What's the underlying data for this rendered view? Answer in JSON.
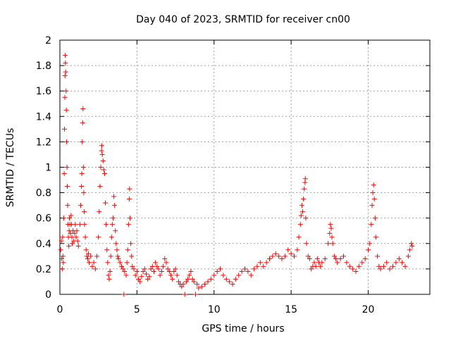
{
  "chart_data": {
    "type": "scatter",
    "title": "Day 040 of 2023, SRMTID for receiver cn00",
    "xlabel": "GPS time / hours",
    "ylabel": "SRMTID / TECUs",
    "xlim": [
      0,
      24
    ],
    "ylim": [
      0,
      2
    ],
    "x_ticks": [
      0,
      5,
      10,
      15,
      20
    ],
    "x_tick_labels": [
      "0",
      "5",
      "10",
      "15",
      "20"
    ],
    "y_ticks": [
      0,
      0.2,
      0.4,
      0.6,
      0.8,
      1,
      1.2,
      1.4,
      1.6,
      1.8,
      2
    ],
    "y_tick_labels": [
      "0",
      "0.2",
      "0.4",
      "0.6",
      "0.8",
      "1",
      "1.2",
      "1.4",
      "1.6",
      "1.8",
      "2"
    ],
    "grid": true,
    "marker": "+",
    "color": "#ff0000",
    "series": [
      {
        "name": "SRMTID",
        "points": [
          [
            0.05,
            0.35
          ],
          [
            0.1,
            0.42
          ],
          [
            0.12,
            0.28
          ],
          [
            0.15,
            0.2
          ],
          [
            0.18,
            0.45
          ],
          [
            0.2,
            0.3
          ],
          [
            0.22,
            0.25
          ],
          [
            0.25,
            0.6
          ],
          [
            0.28,
            0.95
          ],
          [
            0.3,
            1.3
          ],
          [
            0.32,
            1.55
          ],
          [
            0.33,
            1.72
          ],
          [
            0.35,
            1.88
          ],
          [
            0.36,
            1.82
          ],
          [
            0.38,
            1.75
          ],
          [
            0.4,
            1.6
          ],
          [
            0.42,
            1.45
          ],
          [
            0.44,
            1.2
          ],
          [
            0.46,
            1.0
          ],
          [
            0.48,
            0.85
          ],
          [
            0.5,
            0.7
          ],
          [
            0.52,
            0.55
          ],
          [
            0.55,
            0.45
          ],
          [
            0.58,
            0.38
          ],
          [
            0.6,
            0.5
          ],
          [
            0.62,
            0.6
          ],
          [
            0.65,
            0.55
          ],
          [
            0.68,
            0.48
          ],
          [
            0.72,
            0.62
          ],
          [
            0.75,
            0.55
          ],
          [
            0.78,
            0.45
          ],
          [
            0.8,
            0.4
          ],
          [
            0.85,
            0.5
          ],
          [
            0.9,
            0.42
          ],
          [
            0.95,
            0.48
          ],
          [
            1.0,
            0.55
          ],
          [
            1.05,
            0.45
          ],
          [
            1.1,
            0.5
          ],
          [
            1.15,
            0.42
          ],
          [
            1.2,
            0.38
          ],
          [
            1.3,
            0.55
          ],
          [
            1.35,
            0.7
          ],
          [
            1.4,
            0.85
          ],
          [
            1.42,
            0.95
          ],
          [
            1.45,
            1.2
          ],
          [
            1.48,
            1.35
          ],
          [
            1.5,
            1.46
          ],
          [
            1.52,
            1.0
          ],
          [
            1.55,
            0.8
          ],
          [
            1.58,
            0.65
          ],
          [
            1.6,
            0.55
          ],
          [
            1.65,
            0.45
          ],
          [
            1.7,
            0.35
          ],
          [
            1.75,
            0.3
          ],
          [
            1.8,
            0.28
          ],
          [
            1.85,
            0.32
          ],
          [
            1.9,
            0.25
          ],
          [
            2.0,
            0.3
          ],
          [
            2.1,
            0.22
          ],
          [
            2.2,
            0.25
          ],
          [
            2.3,
            0.2
          ],
          [
            2.4,
            0.3
          ],
          [
            2.5,
            0.45
          ],
          [
            2.55,
            0.65
          ],
          [
            2.6,
            0.85
          ],
          [
            2.65,
            1.0
          ],
          [
            2.7,
            1.13
          ],
          [
            2.72,
            1.17
          ],
          [
            2.75,
            1.1
          ],
          [
            2.8,
            1.05
          ],
          [
            2.85,
            0.98
          ],
          [
            2.9,
            0.95
          ],
          [
            2.95,
            0.72
          ],
          [
            3.0,
            0.55
          ],
          [
            3.05,
            0.35
          ],
          [
            3.1,
            0.25
          ],
          [
            3.15,
            0.15
          ],
          [
            3.2,
            0.12
          ],
          [
            3.25,
            0.18
          ],
          [
            3.3,
            0.3
          ],
          [
            3.35,
            0.45
          ],
          [
            3.4,
            0.55
          ],
          [
            3.45,
            0.6
          ],
          [
            3.5,
            0.77
          ],
          [
            3.55,
            0.7
          ],
          [
            3.6,
            0.5
          ],
          [
            3.65,
            0.4
          ],
          [
            3.7,
            0.35
          ],
          [
            3.75,
            0.3
          ],
          [
            3.8,
            0.28
          ],
          [
            3.9,
            0.25
          ],
          [
            4.0,
            0.22
          ],
          [
            4.1,
            0.2
          ],
          [
            4.15,
            0.0
          ],
          [
            4.2,
            0.18
          ],
          [
            4.3,
            0.15
          ],
          [
            4.35,
            0.25
          ],
          [
            4.4,
            0.35
          ],
          [
            4.45,
            0.55
          ],
          [
            4.5,
            0.75
          ],
          [
            4.52,
            0.83
          ],
          [
            4.55,
            0.6
          ],
          [
            4.6,
            0.4
          ],
          [
            4.65,
            0.3
          ],
          [
            4.7,
            0.22
          ],
          [
            4.8,
            0.2
          ],
          [
            4.9,
            0.15
          ],
          [
            5.0,
            0.18
          ],
          [
            5.1,
            0.12
          ],
          [
            5.2,
            0.1
          ],
          [
            5.3,
            0.14
          ],
          [
            5.4,
            0.18
          ],
          [
            5.5,
            0.2
          ],
          [
            5.6,
            0.16
          ],
          [
            5.7,
            0.12
          ],
          [
            5.8,
            0.14
          ],
          [
            5.9,
            0.2
          ],
          [
            6.0,
            0.22
          ],
          [
            6.1,
            0.18
          ],
          [
            6.2,
            0.25
          ],
          [
            6.3,
            0.22
          ],
          [
            6.4,
            0.2
          ],
          [
            6.5,
            0.15
          ],
          [
            6.6,
            0.18
          ],
          [
            6.7,
            0.22
          ],
          [
            6.8,
            0.28
          ],
          [
            6.9,
            0.25
          ],
          [
            7.0,
            0.2
          ],
          [
            7.1,
            0.18
          ],
          [
            7.2,
            0.15
          ],
          [
            7.3,
            0.12
          ],
          [
            7.4,
            0.18
          ],
          [
            7.5,
            0.2
          ],
          [
            7.6,
            0.15
          ],
          [
            7.7,
            0.1
          ],
          [
            7.8,
            0.08
          ],
          [
            7.9,
            0.06
          ],
          [
            8.0,
            0.08
          ],
          [
            8.1,
            0.0
          ],
          [
            8.2,
            0.1
          ],
          [
            8.3,
            0.12
          ],
          [
            8.4,
            0.15
          ],
          [
            8.5,
            0.18
          ],
          [
            8.6,
            0.12
          ],
          [
            8.7,
            0.1
          ],
          [
            8.8,
            0.0
          ],
          [
            8.9,
            0.08
          ],
          [
            9.0,
            0.05
          ],
          [
            9.2,
            0.06
          ],
          [
            9.4,
            0.08
          ],
          [
            9.6,
            0.1
          ],
          [
            9.8,
            0.12
          ],
          [
            10.0,
            0.15
          ],
          [
            10.2,
            0.18
          ],
          [
            10.4,
            0.2
          ],
          [
            10.6,
            0.15
          ],
          [
            10.8,
            0.12
          ],
          [
            11.0,
            0.1
          ],
          [
            11.2,
            0.08
          ],
          [
            11.4,
            0.12
          ],
          [
            11.6,
            0.15
          ],
          [
            11.8,
            0.18
          ],
          [
            12.0,
            0.2
          ],
          [
            12.2,
            0.18
          ],
          [
            12.4,
            0.15
          ],
          [
            12.6,
            0.2
          ],
          [
            12.8,
            0.22
          ],
          [
            13.0,
            0.25
          ],
          [
            13.2,
            0.22
          ],
          [
            13.4,
            0.25
          ],
          [
            13.6,
            0.28
          ],
          [
            13.8,
            0.3
          ],
          [
            14.0,
            0.32
          ],
          [
            14.2,
            0.3
          ],
          [
            14.4,
            0.28
          ],
          [
            14.6,
            0.3
          ],
          [
            14.8,
            0.35
          ],
          [
            15.0,
            0.32
          ],
          [
            15.2,
            0.3
          ],
          [
            15.4,
            0.35
          ],
          [
            15.5,
            0.45
          ],
          [
            15.6,
            0.55
          ],
          [
            15.65,
            0.62
          ],
          [
            15.7,
            0.7
          ],
          [
            15.75,
            0.65
          ],
          [
            15.8,
            0.75
          ],
          [
            15.85,
            0.83
          ],
          [
            15.9,
            0.88
          ],
          [
            15.92,
            0.91
          ],
          [
            15.95,
            0.6
          ],
          [
            16.0,
            0.4
          ],
          [
            16.1,
            0.3
          ],
          [
            16.2,
            0.28
          ],
          [
            16.3,
            0.2
          ],
          [
            16.4,
            0.22
          ],
          [
            16.5,
            0.25
          ],
          [
            16.6,
            0.22
          ],
          [
            16.7,
            0.28
          ],
          [
            16.8,
            0.25
          ],
          [
            16.9,
            0.22
          ],
          [
            17.0,
            0.25
          ],
          [
            17.2,
            0.28
          ],
          [
            17.4,
            0.4
          ],
          [
            17.5,
            0.48
          ],
          [
            17.55,
            0.55
          ],
          [
            17.6,
            0.52
          ],
          [
            17.65,
            0.45
          ],
          [
            17.7,
            0.4
          ],
          [
            17.8,
            0.3
          ],
          [
            17.9,
            0.28
          ],
          [
            18.0,
            0.25
          ],
          [
            18.2,
            0.28
          ],
          [
            18.4,
            0.3
          ],
          [
            18.6,
            0.25
          ],
          [
            18.8,
            0.22
          ],
          [
            19.0,
            0.2
          ],
          [
            19.2,
            0.18
          ],
          [
            19.4,
            0.22
          ],
          [
            19.6,
            0.25
          ],
          [
            19.8,
            0.28
          ],
          [
            20.0,
            0.35
          ],
          [
            20.1,
            0.4
          ],
          [
            20.2,
            0.55
          ],
          [
            20.25,
            0.7
          ],
          [
            20.3,
            0.8
          ],
          [
            20.35,
            0.86
          ],
          [
            20.4,
            0.75
          ],
          [
            20.45,
            0.6
          ],
          [
            20.5,
            0.45
          ],
          [
            20.6,
            0.3
          ],
          [
            20.7,
            0.22
          ],
          [
            20.8,
            0.2
          ],
          [
            21.0,
            0.22
          ],
          [
            21.2,
            0.25
          ],
          [
            21.4,
            0.2
          ],
          [
            21.6,
            0.22
          ],
          [
            21.8,
            0.25
          ],
          [
            22.0,
            0.28
          ],
          [
            22.2,
            0.25
          ],
          [
            22.4,
            0.22
          ],
          [
            22.6,
            0.3
          ],
          [
            22.7,
            0.35
          ],
          [
            22.8,
            0.4
          ],
          [
            22.85,
            0.38
          ]
        ]
      }
    ]
  }
}
